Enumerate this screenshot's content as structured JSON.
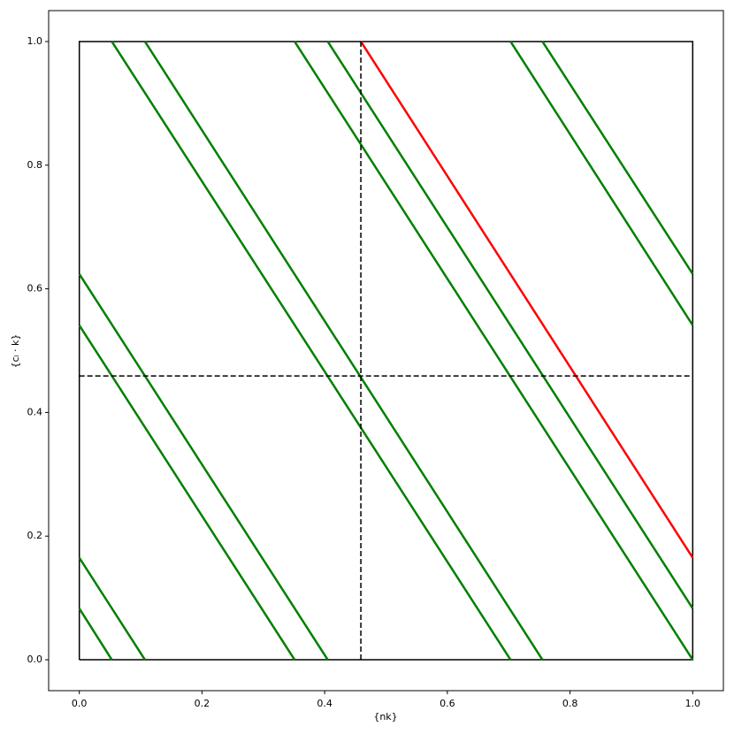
{
  "chart_data": {
    "type": "line",
    "x_label": "{nk}",
    "y_label": "{cₗ · k}",
    "xlim": [
      -0.05,
      1.05
    ],
    "ylim": [
      -0.05,
      1.05
    ],
    "xticks": [
      {
        "value": 0,
        "label": "0.0"
      },
      {
        "value": 0.2,
        "label": "0.2"
      },
      {
        "value": 0.4,
        "label": "0.4"
      },
      {
        "value": 0.6,
        "label": "0.6"
      },
      {
        "value": 0.8,
        "label": "0.8"
      },
      {
        "value": 1,
        "label": "1.0"
      }
    ],
    "yticks": [
      {
        "value": 0,
        "label": "0.0"
      },
      {
        "value": 0.2,
        "label": "0.2"
      },
      {
        "value": 0.4,
        "label": "0.4"
      },
      {
        "value": 0.6,
        "label": "0.6"
      },
      {
        "value": 0.8,
        "label": "0.8"
      },
      {
        "value": 1,
        "label": "1.0"
      }
    ],
    "grid": false,
    "series": [
      {
        "color": "#000000",
        "dashed": false,
        "width": 1.5,
        "x": [
          0,
          1,
          1,
          0,
          0
        ],
        "values": [
          0,
          0,
          1,
          1,
          0
        ]
      },
      {
        "color": "#008000",
        "dashed": false,
        "width": 2.5,
        "x": [
          0,
          0.053,
          null,
          0,
          0.107,
          null,
          0,
          0.351,
          null,
          0,
          0.405,
          null,
          0.053,
          0.703,
          null,
          0.107,
          0.755,
          null,
          0.351,
          1,
          null,
          0.405,
          1,
          null,
          0.703,
          1,
          null,
          0.755,
          1
        ],
        "values": [
          0.083,
          0,
          null,
          0.165,
          0,
          null,
          0.541,
          0,
          null,
          0.624,
          0,
          null,
          1,
          0,
          null,
          1,
          0,
          null,
          1,
          0,
          null,
          1,
          0.083,
          null,
          1,
          0.541,
          null,
          1,
          0.624
        ]
      },
      {
        "color": "#ff0000",
        "dashed": false,
        "width": 2.5,
        "x": [
          0.459,
          1
        ],
        "values": [
          1,
          0.165
        ]
      },
      {
        "color": "#000000",
        "dashed": true,
        "width": 1.5,
        "x": [
          0.459,
          0.459
        ],
        "values": [
          0,
          1
        ]
      },
      {
        "color": "#000000",
        "dashed": true,
        "width": 1.5,
        "x": [
          0,
          1
        ],
        "values": [
          0.459,
          0.459
        ]
      }
    ]
  }
}
